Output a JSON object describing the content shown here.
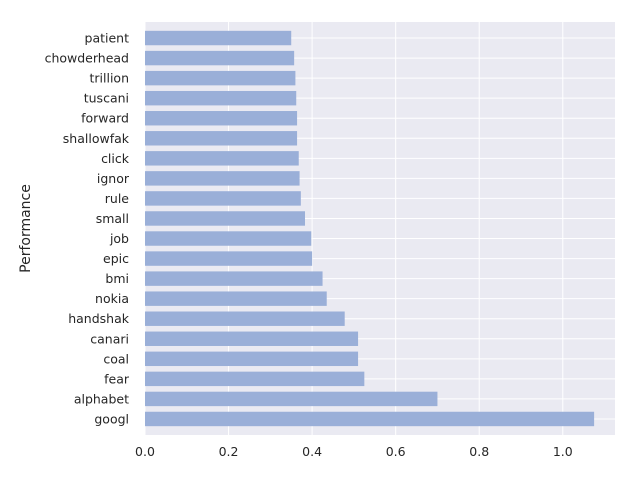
{
  "chart_data": {
    "type": "bar",
    "orientation": "horizontal",
    "ylabel": "Performance",
    "xlabel": "",
    "title": "",
    "categories": [
      "googl",
      "alphabet",
      "fear",
      "coal",
      "canari",
      "handshak",
      "nokia",
      "bmi",
      "epic",
      "job",
      "small",
      "rule",
      "ignor",
      "click",
      "shallowfak",
      "forward",
      "tuscani",
      "trillion",
      "chowderhead",
      "patient"
    ],
    "values": [
      1.075,
      0.7,
      0.525,
      0.51,
      0.51,
      0.478,
      0.435,
      0.425,
      0.4,
      0.398,
      0.383,
      0.373,
      0.37,
      0.368,
      0.364,
      0.364,
      0.362,
      0.36,
      0.357,
      0.35
    ],
    "xlim": [
      0,
      1.125
    ],
    "xticks": [
      0.0,
      0.2,
      0.4,
      0.6,
      0.8,
      1.0
    ],
    "xtick_labels": [
      "0.0",
      "0.2",
      "0.4",
      "0.6",
      "0.8",
      "1.0"
    ],
    "grid": true,
    "bar_color": "#9aafd8",
    "background_color": "#eaeaf2",
    "grid_color": "#ffffff"
  }
}
